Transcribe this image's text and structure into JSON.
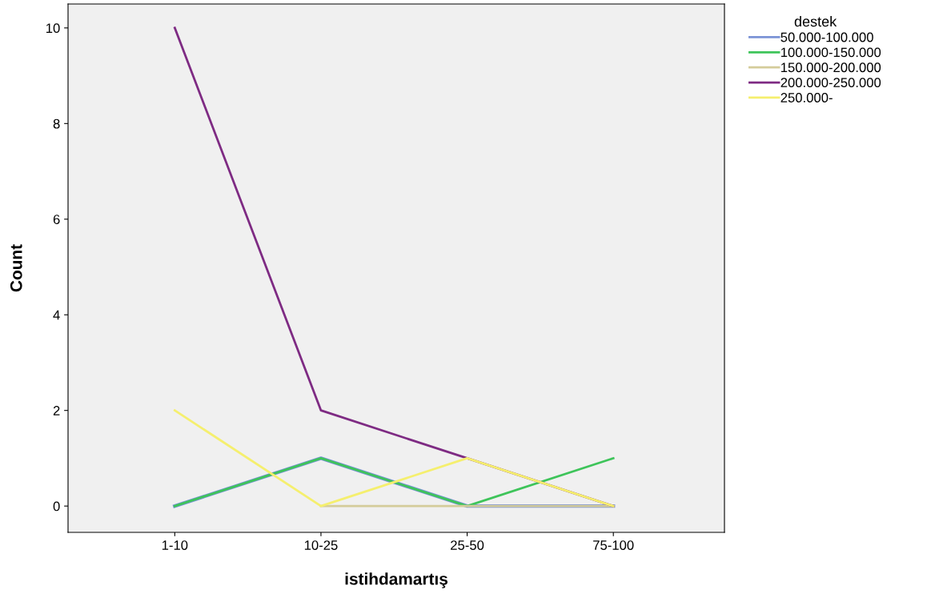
{
  "chart_data": {
    "type": "line",
    "xlabel": "istihdamartış",
    "ylabel": "Count",
    "legend_title": "destek",
    "legend": "top right",
    "categories": [
      "1-10",
      "10-25",
      "25-50",
      "75-100"
    ],
    "ylim": [
      -0.55,
      10.5
    ],
    "yticks": [
      0,
      2,
      4,
      6,
      8,
      10
    ],
    "grid": false,
    "series": [
      {
        "name": "50.000-100.000",
        "color": "#7b93d6",
        "values": [
          0,
          1,
          0,
          0
        ]
      },
      {
        "name": "100.000-150.000",
        "color": "#3ec45a",
        "values": [
          0,
          1,
          0,
          1
        ]
      },
      {
        "name": "150.000-200.000",
        "color": "#d4cc9a",
        "values": [
          null,
          0,
          0,
          0
        ]
      },
      {
        "name": "200.000-250.000",
        "color": "#7e2b83",
        "values": [
          10,
          2,
          1,
          0
        ]
      },
      {
        "name": "250.000-",
        "color": "#f5ef6e",
        "values": [
          2,
          0,
          1,
          0
        ]
      }
    ]
  }
}
